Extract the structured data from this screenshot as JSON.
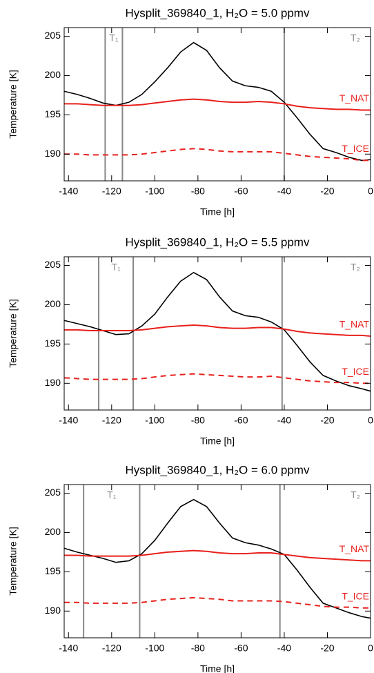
{
  "chart_data": [
    {
      "type": "line",
      "title": "Hysplit_369840_1, H₂O = 5.0 ppmv",
      "x_label": "Time [h]",
      "y_label": "Temperature [K]",
      "x": [
        -142,
        -136,
        -130,
        -124,
        -118,
        -112,
        -106,
        -100,
        -94,
        -88,
        -82,
        -76,
        -70,
        -64,
        -58,
        -52,
        -46,
        -40,
        -34,
        -28,
        -22,
        -16,
        -10,
        -4,
        0
      ],
      "series": [
        {
          "color": "#000000",
          "style": "solid",
          "values": [
            198.0,
            197.6,
            197.1,
            196.5,
            196.2,
            196.6,
            197.6,
            199.2,
            201.0,
            203.0,
            204.2,
            203.2,
            201.0,
            199.3,
            198.7,
            198.5,
            198.0,
            196.6,
            194.6,
            192.5,
            190.7,
            190.2,
            189.6,
            189.2,
            189.3
          ]
        },
        {
          "name": "T_NAT",
          "color": "#e8201c",
          "style": "solid",
          "values": [
            196.4,
            196.4,
            196.3,
            196.2,
            196.2,
            196.2,
            196.3,
            196.5,
            196.7,
            196.9,
            197.0,
            196.9,
            196.7,
            196.6,
            196.6,
            196.7,
            196.6,
            196.4,
            196.1,
            195.9,
            195.8,
            195.7,
            195.7,
            195.6,
            195.6
          ]
        },
        {
          "name": "T_ICE",
          "color": "#e8201c",
          "style": "dashed",
          "values": [
            190.0,
            190.0,
            189.9,
            189.9,
            189.9,
            189.9,
            190.0,
            190.2,
            190.4,
            190.6,
            190.7,
            190.6,
            190.4,
            190.3,
            190.3,
            190.3,
            190.3,
            190.1,
            189.9,
            189.7,
            189.6,
            189.5,
            189.4,
            189.2,
            189.2
          ]
        }
      ],
      "vlines": [
        -123,
        -115,
        -40
      ],
      "vline_color": "#888888",
      "period_labels": [
        "T₁",
        "T₂"
      ],
      "xlim": [
        -142,
        0
      ],
      "xticks": [
        -140,
        -120,
        -100,
        -80,
        -60,
        -40,
        -20,
        0
      ],
      "ylim": [
        186.6,
        206.1
      ],
      "yticks": [
        190,
        195,
        200,
        205
      ]
    },
    {
      "type": "line",
      "title": "Hysplit_369840_1, H₂O = 5.5 ppmv",
      "x_label": "Time [h]",
      "y_label": "Temperature [K]",
      "x": [
        -142,
        -136,
        -130,
        -124,
        -118,
        -112,
        -106,
        -100,
        -94,
        -88,
        -82,
        -76,
        -70,
        -64,
        -58,
        -52,
        -46,
        -40,
        -34,
        -28,
        -22,
        -16,
        -10,
        -4,
        0
      ],
      "series": [
        {
          "color": "#000000",
          "style": "solid",
          "values": [
            198.0,
            197.6,
            197.2,
            196.7,
            196.2,
            196.3,
            197.3,
            198.8,
            201.0,
            203.0,
            204.1,
            203.2,
            201.0,
            199.2,
            198.6,
            198.4,
            197.8,
            196.8,
            194.8,
            192.7,
            191.0,
            190.3,
            189.7,
            189.3,
            189.0
          ]
        },
        {
          "name": "T_NAT",
          "color": "#e8201c",
          "style": "solid",
          "values": [
            196.8,
            196.8,
            196.7,
            196.7,
            196.7,
            196.7,
            196.8,
            197.0,
            197.2,
            197.3,
            197.4,
            197.3,
            197.1,
            197.0,
            197.0,
            197.1,
            197.1,
            196.9,
            196.6,
            196.4,
            196.3,
            196.2,
            196.1,
            196.1,
            196.0
          ]
        },
        {
          "name": "T_ICE",
          "color": "#e8201c",
          "style": "dashed",
          "values": [
            190.7,
            190.6,
            190.5,
            190.5,
            190.5,
            190.5,
            190.6,
            190.8,
            191.0,
            191.1,
            191.2,
            191.1,
            191.0,
            190.9,
            190.8,
            190.8,
            190.9,
            190.7,
            190.5,
            190.3,
            190.2,
            190.1,
            190.1,
            190.0,
            190.0
          ]
        }
      ],
      "vlines": [
        -126,
        -110,
        -41
      ],
      "vline_color": "#888888",
      "period_labels": [
        "T₁",
        "T₂"
      ],
      "xlim": [
        -142,
        0
      ],
      "xticks": [
        -140,
        -120,
        -100,
        -80,
        -60,
        -40,
        -20,
        0
      ],
      "ylim": [
        186.6,
        206.1
      ],
      "yticks": [
        190,
        195,
        200,
        205
      ]
    },
    {
      "type": "line",
      "title": "Hysplit_369840_1, H₂O = 6.0 ppmv",
      "x_label": "Time [h]",
      "y_label": "Temperature [K]",
      "x": [
        -142,
        -136,
        -130,
        -124,
        -118,
        -112,
        -106,
        -100,
        -94,
        -88,
        -82,
        -76,
        -70,
        -64,
        -58,
        -52,
        -46,
        -40,
        -34,
        -28,
        -22,
        -16,
        -10,
        -4,
        0
      ],
      "series": [
        {
          "color": "#000000",
          "style": "solid",
          "values": [
            198.0,
            197.5,
            197.1,
            196.7,
            196.2,
            196.4,
            197.3,
            199.0,
            201.2,
            203.3,
            204.2,
            203.3,
            201.2,
            199.3,
            198.7,
            198.4,
            197.9,
            197.2,
            195.2,
            193.0,
            191.0,
            190.4,
            189.8,
            189.3,
            189.1
          ]
        },
        {
          "name": "T_NAT",
          "color": "#e8201c",
          "style": "solid",
          "values": [
            197.1,
            197.1,
            197.0,
            197.0,
            197.0,
            197.0,
            197.1,
            197.3,
            197.5,
            197.6,
            197.7,
            197.6,
            197.4,
            197.3,
            197.3,
            197.4,
            197.4,
            197.2,
            197.0,
            196.8,
            196.7,
            196.6,
            196.5,
            196.4,
            196.4
          ]
        },
        {
          "name": "T_ICE",
          "color": "#e8201c",
          "style": "dashed",
          "values": [
            191.1,
            191.1,
            191.0,
            191.0,
            191.0,
            191.0,
            191.1,
            191.3,
            191.5,
            191.6,
            191.7,
            191.6,
            191.5,
            191.3,
            191.3,
            191.3,
            191.3,
            191.2,
            191.0,
            190.8,
            190.6,
            190.5,
            190.5,
            190.4,
            190.4
          ]
        }
      ],
      "vlines": [
        -133,
        -107,
        -42
      ],
      "vline_color": "#888888",
      "period_labels": [
        "T₁",
        "T₂"
      ],
      "xlim": [
        -142,
        0
      ],
      "xticks": [
        -140,
        -120,
        -100,
        -80,
        -60,
        -40,
        -20,
        0
      ],
      "ylim": [
        186.6,
        206.1
      ],
      "yticks": [
        190,
        195,
        200,
        205
      ]
    }
  ]
}
